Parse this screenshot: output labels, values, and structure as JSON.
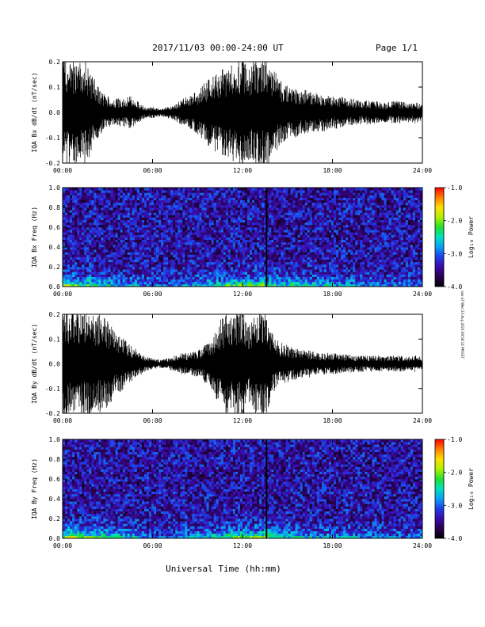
{
  "header": {
    "title": "2017/11/03  00:00-24:00 UT",
    "page": "Page 1/1"
  },
  "footer": {
    "xlabel": "Universal Time (hh:mm)"
  },
  "side_note": "aas-a7 Wed 23 Aug 2023 09:58:14 PM EST",
  "colorbar": {
    "label": "Log₁₀ Power",
    "ticks": [
      "-1.0",
      "-2.0",
      "-3.0",
      "-4.0"
    ],
    "range": [
      -4.0,
      -1.0
    ],
    "colors": [
      "#000000",
      "#2a0050",
      "#3a0aa8",
      "#1e3ee8",
      "#0aa0f5",
      "#00e0c0",
      "#20e030",
      "#b0f000",
      "#ffe000",
      "#ff8000",
      "#ff0000"
    ]
  },
  "chart_data": [
    {
      "type": "line",
      "title": "",
      "ylabel": "IQA Bx dB/dt (nT/sec)",
      "xlabel": "",
      "xlim": [
        0,
        24
      ],
      "ylim": [
        -0.2,
        0.2
      ],
      "xticks": [
        "00:00",
        "06:00",
        "12:00",
        "18:00",
        "24:00"
      ],
      "yticks": [
        "0.2",
        "0.1",
        "0.0",
        "-0.1",
        "-0.2"
      ],
      "grid": false,
      "x_hours": [
        0,
        0.5,
        1,
        1.5,
        2,
        2.5,
        3,
        3.5,
        4,
        4.5,
        5,
        5.5,
        6,
        6.5,
        7,
        7.5,
        8,
        8.5,
        9,
        9.5,
        10,
        10.5,
        11,
        11.5,
        12,
        12.5,
        13,
        13.5,
        14,
        14.5,
        15,
        15.5,
        16,
        16.5,
        17,
        17.5,
        18,
        18.5,
        19,
        19.5,
        20,
        20.5,
        21,
        21.5,
        22,
        22.5,
        23,
        23.5,
        24
      ],
      "envelope_amplitude": [
        0.2,
        0.2,
        0.18,
        0.2,
        0.14,
        0.08,
        0.06,
        0.05,
        0.05,
        0.06,
        0.04,
        0.02,
        0.02,
        0.015,
        0.02,
        0.03,
        0.05,
        0.06,
        0.08,
        0.11,
        0.14,
        0.15,
        0.18,
        0.18,
        0.2,
        0.17,
        0.2,
        0.2,
        0.18,
        0.12,
        0.1,
        0.09,
        0.08,
        0.08,
        0.07,
        0.07,
        0.06,
        0.06,
        0.05,
        0.05,
        0.04,
        0.045,
        0.04,
        0.035,
        0.04,
        0.04,
        0.035,
        0.04,
        0.03
      ]
    },
    {
      "type": "heatmap",
      "title": "",
      "ylabel": "IQA Bx Freq (Hz)",
      "xlabel": "",
      "xlim": [
        0,
        24
      ],
      "ylim": [
        0.0,
        1.0
      ],
      "xticks": [
        "00:00",
        "06:00",
        "12:00",
        "18:00",
        "24:00"
      ],
      "yticks": [
        "1.0",
        "0.8",
        "0.6",
        "0.4",
        "0.2",
        "0.0"
      ],
      "value": "log10 power",
      "color_range": [
        -4.0,
        -1.0
      ],
      "x_hours": [
        0,
        0.5,
        1,
        1.5,
        2,
        2.5,
        3,
        3.5,
        4,
        4.5,
        5,
        5.5,
        6,
        6.5,
        7,
        7.5,
        8,
        8.5,
        9,
        9.5,
        10,
        10.5,
        11,
        11.5,
        12,
        12.5,
        13,
        13.5,
        14,
        14.5,
        15,
        15.5,
        16,
        16.5,
        17,
        17.5,
        18,
        18.5,
        19,
        19.5,
        20,
        20.5,
        21,
        21.5,
        22,
        22.5,
        23,
        23.5,
        24
      ],
      "low_freq_log_power": [
        -1.9,
        -1.8,
        -2.0,
        -1.9,
        -2.1,
        -2.3,
        -2.4,
        -2.5,
        -2.5,
        -2.5,
        -2.6,
        -2.8,
        -2.9,
        -3.0,
        -2.9,
        -2.8,
        -2.6,
        -2.6,
        -2.5,
        -2.4,
        -2.3,
        -2.2,
        -2.1,
        -2.1,
        -1.9,
        -2.0,
        -2.0,
        -1.8,
        -2.0,
        -2.2,
        -2.3,
        -2.3,
        -2.4,
        -2.4,
        -2.5,
        -2.5,
        -2.6,
        -2.6,
        -2.6,
        -2.7,
        -2.7,
        -2.7,
        -2.8,
        -2.8,
        -2.8,
        -2.8,
        -2.9,
        -2.9,
        -2.9
      ],
      "background_log_power": -3.4
    },
    {
      "type": "line",
      "title": "",
      "ylabel": "IQA By dB/dt (nT/sec)",
      "xlabel": "",
      "xlim": [
        0,
        24
      ],
      "ylim": [
        -0.2,
        0.2
      ],
      "xticks": [
        "00:00",
        "06:00",
        "12:00",
        "18:00",
        "24:00"
      ],
      "yticks": [
        "0.2",
        "0.1",
        "0.0",
        "-0.1",
        "-0.2"
      ],
      "grid": false,
      "x_hours": [
        0,
        0.5,
        1,
        1.5,
        2,
        2.5,
        3,
        3.5,
        4,
        4.5,
        5,
        5.5,
        6,
        6.5,
        7,
        7.5,
        8,
        8.5,
        9,
        9.5,
        10,
        10.5,
        11,
        11.5,
        12,
        12.5,
        13,
        13.5,
        14,
        14.5,
        15,
        15.5,
        16,
        16.5,
        17,
        17.5,
        18,
        18.5,
        19,
        19.5,
        20,
        20.5,
        21,
        21.5,
        22,
        22.5,
        23,
        23.5,
        24
      ],
      "envelope_amplitude": [
        0.2,
        0.2,
        0.2,
        0.2,
        0.2,
        0.18,
        0.16,
        0.12,
        0.1,
        0.07,
        0.05,
        0.03,
        0.02,
        0.015,
        0.02,
        0.03,
        0.04,
        0.04,
        0.05,
        0.07,
        0.1,
        0.16,
        0.2,
        0.2,
        0.2,
        0.14,
        0.2,
        0.2,
        0.11,
        0.08,
        0.07,
        0.06,
        0.05,
        0.05,
        0.04,
        0.04,
        0.04,
        0.035,
        0.035,
        0.03,
        0.03,
        0.03,
        0.03,
        0.025,
        0.03,
        0.03,
        0.025,
        0.03,
        0.025
      ]
    },
    {
      "type": "heatmap",
      "title": "",
      "ylabel": "IQA By Freq (Hz)",
      "xlabel": "",
      "xlim": [
        0,
        24
      ],
      "ylim": [
        0.0,
        1.0
      ],
      "xticks": [
        "00:00",
        "06:00",
        "12:00",
        "18:00",
        "24:00"
      ],
      "yticks": [
        "1.0",
        "0.8",
        "0.6",
        "0.4",
        "0.2",
        "0.0"
      ],
      "value": "log10 power",
      "color_range": [
        -4.0,
        -1.0
      ],
      "x_hours": [
        0,
        0.5,
        1,
        1.5,
        2,
        2.5,
        3,
        3.5,
        4,
        4.5,
        5,
        5.5,
        6,
        6.5,
        7,
        7.5,
        8,
        8.5,
        9,
        9.5,
        10,
        10.5,
        11,
        11.5,
        12,
        12.5,
        13,
        13.5,
        14,
        14.5,
        15,
        15.5,
        16,
        16.5,
        17,
        17.5,
        18,
        18.5,
        19,
        19.5,
        20,
        20.5,
        21,
        21.5,
        22,
        22.5,
        23,
        23.5,
        24
      ],
      "low_freq_log_power": [
        -1.7,
        -1.7,
        -1.8,
        -1.8,
        -1.9,
        -2.0,
        -2.1,
        -2.2,
        -2.3,
        -2.4,
        -2.5,
        -2.7,
        -2.9,
        -3.0,
        -2.9,
        -2.8,
        -2.7,
        -2.6,
        -2.5,
        -2.4,
        -2.3,
        -2.2,
        -2.0,
        -2.0,
        -1.8,
        -2.0,
        -1.9,
        -1.8,
        -2.1,
        -2.3,
        -2.4,
        -2.4,
        -2.5,
        -2.5,
        -2.6,
        -2.6,
        -2.6,
        -2.7,
        -2.7,
        -2.7,
        -2.8,
        -2.8,
        -2.8,
        -2.8,
        -2.9,
        -2.9,
        -2.9,
        -2.9,
        -2.9
      ],
      "background_log_power": -3.4
    }
  ]
}
